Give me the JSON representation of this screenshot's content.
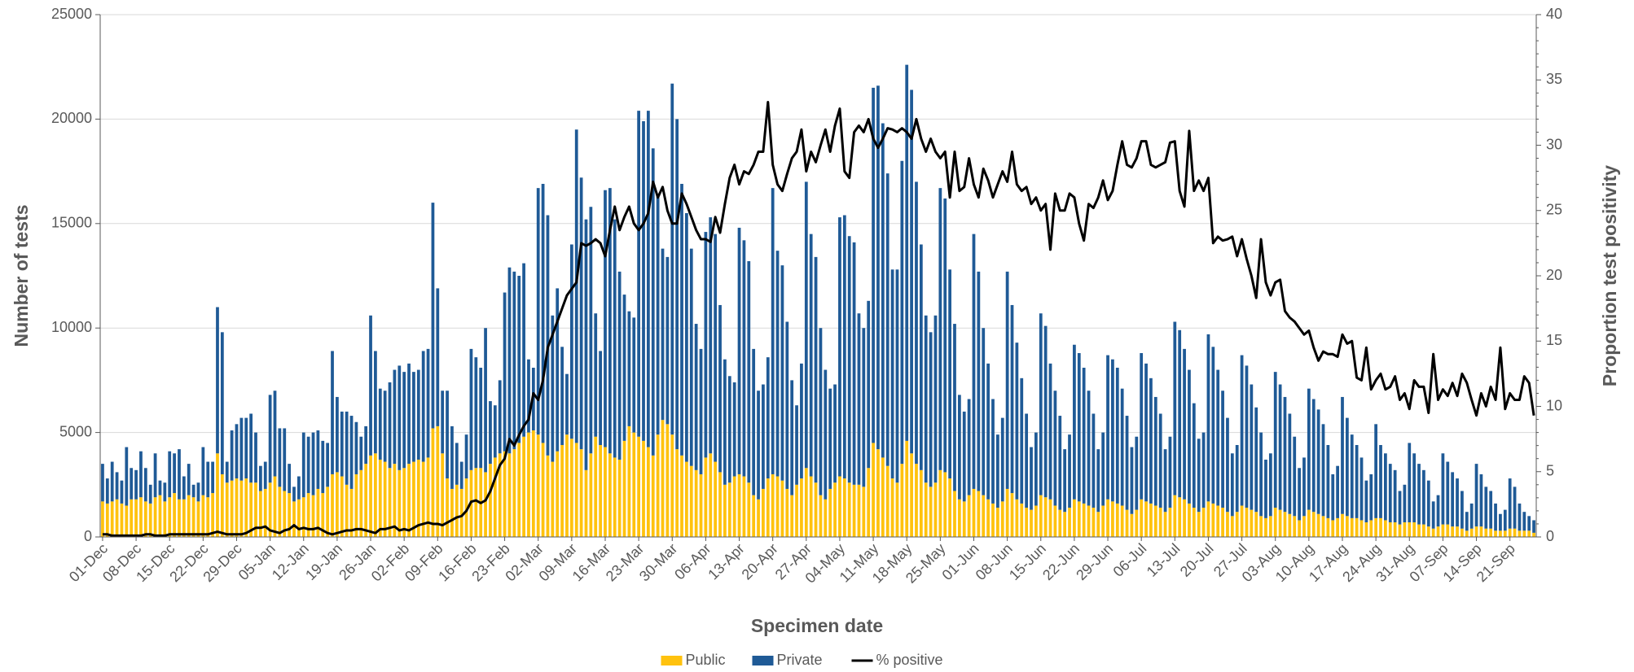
{
  "chart_data": {
    "type": "bar",
    "stacked": true,
    "x_title": "Specimen date",
    "y_title": "Number of tests",
    "y2_title": "Proportion test positivity",
    "ylim": [
      0,
      25000
    ],
    "yticks": [
      0,
      5000,
      10000,
      15000,
      20000,
      25000
    ],
    "y2lim": [
      0,
      40
    ],
    "y2ticks": [
      0,
      5,
      10,
      15,
      20,
      25,
      30,
      35,
      40
    ],
    "grid": true,
    "legend": "bottom",
    "categories": [
      "01-Dec",
      null,
      null,
      null,
      null,
      null,
      null,
      "08-Dec",
      null,
      null,
      null,
      null,
      null,
      null,
      "15-Dec",
      null,
      null,
      null,
      null,
      null,
      null,
      "22-Dec",
      null,
      null,
      null,
      null,
      null,
      null,
      "29-Dec",
      null,
      null,
      null,
      null,
      null,
      null,
      "05-Jan",
      null,
      null,
      null,
      null,
      null,
      null,
      "12-Jan",
      null,
      null,
      null,
      null,
      null,
      null,
      "19-Jan",
      null,
      null,
      null,
      null,
      null,
      null,
      "26-Jan",
      null,
      null,
      null,
      null,
      null,
      null,
      "02-Feb",
      null,
      null,
      null,
      null,
      null,
      null,
      "09-Feb",
      null,
      null,
      null,
      null,
      null,
      null,
      "16-Feb",
      null,
      null,
      null,
      null,
      null,
      null,
      "23-Feb",
      null,
      null,
      null,
      null,
      null,
      null,
      "02-Mar",
      null,
      null,
      null,
      null,
      null,
      null,
      "09-Mar",
      null,
      null,
      null,
      null,
      null,
      null,
      "16-Mar",
      null,
      null,
      null,
      null,
      null,
      null,
      "23-Mar",
      null,
      null,
      null,
      null,
      null,
      null,
      "30-Mar",
      null,
      null,
      null,
      null,
      null,
      null,
      "06-Apr",
      null,
      null,
      null,
      null,
      null,
      null,
      "13-Apr",
      null,
      null,
      null,
      null,
      null,
      null,
      "20-Apr",
      null,
      null,
      null,
      null,
      null,
      null,
      "27-Apr",
      null,
      null,
      null,
      null,
      null,
      null,
      "04-May",
      null,
      null,
      null,
      null,
      null,
      null,
      "11-May",
      null,
      null,
      null,
      null,
      null,
      null,
      "18-May",
      null,
      null,
      null,
      null,
      null,
      null,
      "25-May",
      null,
      null,
      null,
      null,
      null,
      null,
      "01-Jun",
      null,
      null,
      null,
      null,
      null,
      null,
      "08-Jun",
      null,
      null,
      null,
      null,
      null,
      null,
      "15-Jun",
      null,
      null,
      null,
      null,
      null,
      null,
      "22-Jun",
      null,
      null,
      null,
      null,
      null,
      null,
      "29-Jun",
      null,
      null,
      null,
      null,
      null,
      null,
      "06-Jul",
      null,
      null,
      null,
      null,
      null,
      null,
      "13-Jul",
      null,
      null,
      null,
      null,
      null,
      null,
      "20-Jul",
      null,
      null,
      null,
      null,
      null,
      null,
      "27-Jul",
      null,
      null,
      null,
      null,
      null,
      null,
      "03-Aug",
      null,
      null,
      null,
      null,
      null,
      null,
      "10-Aug",
      null,
      null,
      null,
      null,
      null,
      null,
      "17-Aug",
      null,
      null,
      null,
      null,
      null,
      null,
      "24-Aug",
      null,
      null,
      null,
      null,
      null,
      null,
      "31-Aug",
      null,
      null,
      null,
      null,
      null,
      null,
      "07-Sep",
      null,
      null,
      null,
      null,
      null,
      null,
      "14-Sep",
      null,
      null,
      null,
      null,
      null,
      null,
      "21-Sep",
      null,
      null,
      null,
      null,
      null
    ],
    "series": [
      {
        "name": "Public",
        "color": "#ffc20e",
        "type": "bar",
        "values": [
          1700,
          1600,
          1700,
          1800,
          1600,
          1500,
          1800,
          1800,
          1900,
          1700,
          1600,
          1900,
          2000,
          1700,
          1900,
          2100,
          1800,
          1800,
          2000,
          1900,
          1700,
          2000,
          1900,
          2100,
          4000,
          3000,
          2600,
          2700,
          2800,
          2700,
          2800,
          2600,
          2600,
          2200,
          2300,
          2600,
          2900,
          2400,
          2200,
          2100,
          1700,
          1800,
          1900,
          2100,
          2000,
          2300,
          2100,
          2400,
          3000,
          3100,
          2900,
          2500,
          2300,
          3000,
          3200,
          3500,
          3900,
          4000,
          3700,
          3600,
          3300,
          3500,
          3200,
          3300,
          3500,
          3600,
          3700,
          3600,
          3800,
          5200,
          5300,
          4000,
          2800,
          2300,
          2500,
          2300,
          2800,
          3200,
          3300,
          3300,
          3100,
          3500,
          3800,
          4000,
          4100,
          4000,
          4200,
          4500,
          4800,
          5000,
          5100,
          4900,
          4500,
          3900,
          3600,
          4100,
          4400,
          4900,
          4700,
          4500,
          4200,
          3200,
          4000,
          4800,
          4400,
          4300,
          4000,
          3800,
          3700,
          4600,
          5300,
          5000,
          4800,
          4600,
          4300,
          3900,
          4900,
          5600,
          5400,
          4900,
          4200,
          3900,
          3600,
          3400,
          3200,
          3000,
          3800,
          4000,
          3600,
          3100,
          2500,
          2600,
          2900,
          3000,
          2900,
          2600,
          2000,
          1800,
          2300,
          2800,
          3000,
          2900,
          2700,
          2300,
          2000,
          2500,
          2800,
          3300,
          2900,
          2600,
          2000,
          1800,
          2300,
          2600,
          2900,
          2800,
          2600,
          2500,
          2500,
          2400,
          3300,
          4500,
          4200,
          3800,
          3400,
          2800,
          2600,
          3500,
          4600,
          4000,
          3500,
          3200,
          2600,
          2400,
          2600,
          3200,
          3100,
          2800,
          2200,
          1800,
          1700,
          2000,
          2300,
          2200,
          2000,
          1800,
          1600,
          1400,
          1700,
          2300,
          2100,
          1800,
          1600,
          1400,
          1300,
          1500,
          2000,
          1900,
          1800,
          1500,
          1300,
          1200,
          1400,
          1800,
          1700,
          1600,
          1500,
          1400,
          1200,
          1500,
          1800,
          1700,
          1600,
          1500,
          1300,
          1100,
          1300,
          1800,
          1700,
          1600,
          1500,
          1400,
          1200,
          1400,
          2000,
          1900,
          1800,
          1600,
          1400,
          1200,
          1400,
          1700,
          1600,
          1500,
          1400,
          1200,
          1000,
          1200,
          1500,
          1400,
          1300,
          1200,
          1000,
          900,
          1000,
          1400,
          1300,
          1200,
          1100,
          1000,
          800,
          1000,
          1300,
          1200,
          1100,
          1000,
          900,
          800,
          900,
          1100,
          1000,
          900,
          900,
          800,
          700,
          800,
          900,
          900,
          800,
          700,
          700,
          600,
          700,
          700,
          700,
          600,
          600,
          500,
          400,
          500,
          600,
          600,
          500,
          500,
          400,
          300,
          400,
          500,
          500,
          400,
          400,
          300,
          300,
          300,
          400,
          400,
          300,
          300,
          300,
          200
        ]
      },
      {
        "name": "Private",
        "color": "#1f5a96",
        "type": "bar",
        "values": [
          1800,
          1200,
          1900,
          1300,
          1100,
          2800,
          1500,
          1400,
          2200,
          1600,
          900,
          2100,
          700,
          900,
          2200,
          1900,
          2400,
          1100,
          1500,
          600,
          900,
          2300,
          1700,
          1500,
          7000,
          6800,
          1000,
          2400,
          2600,
          3000,
          2900,
          3300,
          2400,
          1200,
          1300,
          4200,
          4100,
          2800,
          3000,
          1400,
          700,
          1100,
          3100,
          2700,
          3000,
          2800,
          2500,
          2100,
          5900,
          3600,
          3100,
          3500,
          3500,
          2500,
          1600,
          1800,
          6700,
          4900,
          3400,
          3400,
          4100,
          4500,
          5000,
          4600,
          4800,
          4300,
          4300,
          5300,
          5200,
          10800,
          6600,
          3000,
          4200,
          3000,
          2000,
          1300,
          2100,
          5800,
          5300,
          4800,
          6900,
          3000,
          2500,
          3500,
          7600,
          8900,
          8500,
          8000,
          8300,
          3500,
          3000,
          11800,
          12400,
          11500,
          7000,
          7800,
          4700,
          2900,
          9300,
          15000,
          13000,
          12000,
          11800,
          5900,
          4500,
          12300,
          12700,
          11400,
          9000,
          7000,
          5500,
          5500,
          15600,
          15300,
          16100,
          14700,
          11400,
          8200,
          8000,
          16800,
          15800,
          13000,
          11900,
          10400,
          7000,
          6000,
          10800,
          11300,
          10900,
          8000,
          6000,
          5100,
          4500,
          11800,
          11300,
          10600,
          7000,
          5200,
          5000,
          5800,
          13700,
          10800,
          10300,
          8000,
          5500,
          3800,
          5500,
          13700,
          11600,
          10800,
          8000,
          6200,
          4800,
          4700,
          12400,
          12600,
          11800,
          11600,
          8200,
          7600,
          8000,
          17000,
          17400,
          16000,
          14000,
          10000,
          10200,
          14500,
          18000,
          17400,
          13500,
          10800,
          8000,
          7400,
          8000,
          13500,
          13100,
          10000,
          8000,
          5000,
          4300,
          4600,
          12200,
          10500,
          8000,
          6500,
          5000,
          3500,
          4000,
          10400,
          9000,
          7500,
          6000,
          4500,
          3000,
          3500,
          8700,
          8200,
          6500,
          5500,
          4500,
          3000,
          3500,
          7400,
          7100,
          6500,
          5500,
          4500,
          3000,
          3500,
          6900,
          6800,
          6500,
          5600,
          4500,
          3200,
          3500,
          7000,
          6600,
          6000,
          5200,
          4500,
          3000,
          3400,
          8300,
          8000,
          7200,
          6400,
          5000,
          3500,
          3600,
          8000,
          7500,
          6500,
          5600,
          4500,
          3000,
          3200,
          7200,
          6800,
          6000,
          5000,
          4000,
          2800,
          3000,
          6500,
          6000,
          5500,
          4800,
          3800,
          2500,
          2800,
          5800,
          5400,
          5000,
          4400,
          3500,
          2200,
          2500,
          5600,
          4700,
          4000,
          3500,
          3000,
          2000,
          2200,
          4500,
          3500,
          3200,
          2800,
          2500,
          1600,
          1800,
          3800,
          3300,
          2900,
          2600,
          2200,
          1300,
          1500,
          3400,
          3000,
          2600,
          2300,
          1800,
          900,
          1200,
          3000,
          2500,
          2000,
          1800,
          1300,
          800,
          1000,
          2400,
          2000,
          1300,
          900,
          700,
          600
        ]
      },
      {
        "name": "% positive",
        "color": "#000000",
        "type": "line",
        "axis": "y2",
        "values": [
          0.2,
          0.2,
          0.1,
          0.1,
          0.1,
          0.1,
          0.1,
          0.1,
          0.1,
          0.2,
          0.2,
          0.1,
          0.1,
          0.1,
          0.2,
          0.2,
          0.2,
          0.2,
          0.2,
          0.2,
          0.2,
          0.2,
          0.2,
          0.3,
          0.4,
          0.3,
          0.2,
          0.2,
          0.2,
          0.2,
          0.3,
          0.5,
          0.7,
          0.7,
          0.8,
          0.5,
          0.4,
          0.3,
          0.5,
          0.6,
          0.9,
          0.6,
          0.7,
          0.6,
          0.6,
          0.7,
          0.5,
          0.3,
          0.2,
          0.3,
          0.4,
          0.5,
          0.5,
          0.6,
          0.6,
          0.5,
          0.4,
          0.3,
          0.6,
          0.6,
          0.7,
          0.8,
          0.5,
          0.6,
          0.5,
          0.7,
          0.9,
          1.0,
          1.1,
          1.0,
          1.0,
          0.9,
          1.1,
          1.3,
          1.5,
          1.6,
          2.0,
          2.7,
          2.8,
          2.6,
          2.8,
          3.5,
          4.5,
          5.5,
          6.0,
          7.5,
          7.0,
          7.8,
          8.5,
          9.0,
          11.0,
          10.5,
          12.0,
          14.5,
          15.5,
          16.5,
          17.5,
          18.5,
          19.0,
          19.5,
          22.5,
          22.3,
          22.5,
          22.8,
          22.5,
          21.5,
          23.5,
          25.3,
          23.5,
          24.5,
          25.3,
          24.0,
          23.5,
          24.0,
          24.8,
          27.2,
          26.0,
          26.8,
          25.0,
          24.0,
          24.0,
          26.3,
          25.5,
          24.5,
          23.5,
          22.8,
          22.8,
          22.6,
          24.5,
          23.3,
          25.5,
          27.5,
          28.5,
          27.0,
          28.0,
          27.8,
          28.5,
          29.5,
          29.5,
          33.3,
          28.5,
          27.0,
          26.5,
          27.8,
          29.0,
          29.5,
          31.2,
          28.0,
          29.5,
          28.7,
          30.0,
          31.2,
          29.5,
          31.5,
          32.8,
          28.0,
          27.5,
          31.0,
          31.5,
          31.0,
          32.0,
          30.5,
          29.8,
          30.5,
          31.3,
          31.2,
          31.0,
          31.3,
          31.0,
          30.5,
          32.0,
          30.5,
          29.5,
          30.5,
          29.5,
          29.0,
          29.5,
          26.0,
          29.5,
          26.5,
          26.8,
          29.0,
          27.0,
          26.0,
          28.2,
          27.3,
          26.0,
          27.0,
          28.0,
          27.2,
          29.5,
          27.0,
          26.5,
          26.8,
          25.5,
          26.0,
          25.0,
          25.5,
          22.0,
          26.3,
          25.0,
          25.0,
          26.3,
          26.0,
          24.0,
          22.7,
          25.5,
          25.2,
          26.0,
          27.3,
          25.8,
          26.5,
          28.5,
          30.3,
          28.5,
          28.3,
          29.0,
          30.3,
          30.3,
          28.5,
          28.3,
          28.5,
          28.7,
          30.2,
          30.3,
          26.5,
          25.3,
          31.1,
          26.5,
          27.3,
          26.5,
          27.5,
          22.5,
          23.0,
          22.7,
          22.8,
          23.0,
          21.5,
          22.8,
          21.3,
          20.0,
          18.3,
          22.8,
          19.5,
          18.5,
          19.5,
          19.7,
          17.3,
          16.8,
          16.5,
          16.0,
          15.5,
          15.8,
          14.5,
          13.5,
          14.2,
          14.0,
          14.0,
          13.8,
          15.5,
          14.8,
          15.0,
          12.2,
          12.0,
          14.5,
          11.3,
          12.0,
          12.5,
          11.3,
          11.5,
          12.3,
          10.5,
          11.0,
          9.8,
          12.0,
          11.5,
          11.5,
          9.5,
          14.0,
          10.5,
          11.3,
          10.8,
          11.8,
          10.8,
          12.5,
          11.8,
          10.5,
          9.3,
          11.0,
          10.0,
          11.5,
          10.5,
          14.5,
          9.8,
          11.0,
          10.5,
          10.5,
          12.3,
          11.8,
          9.3
        ]
      }
    ]
  }
}
